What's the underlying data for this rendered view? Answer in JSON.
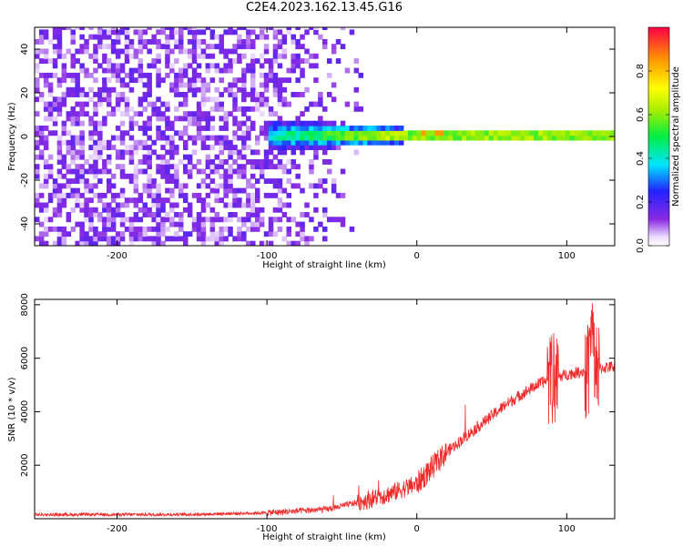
{
  "title": "C2E4.2023.162.13.45.G16",
  "chart_data": [
    {
      "type": "heatmap",
      "xlabel": "Height of straight line (km)",
      "ylabel": "Frequency (Hz)",
      "xlim": [
        -255,
        132
      ],
      "ylim": [
        -50,
        50
      ],
      "xticks": [
        -200,
        -100,
        0,
        100
      ],
      "yticks": [
        -40,
        -20,
        0,
        20,
        40
      ],
      "colorbar": {
        "label": "Normalized spectral amplitude",
        "range": [
          0,
          1
        ],
        "ticks": [
          "0.0",
          "0.2",
          "0.4",
          "0.6",
          "0.8"
        ]
      },
      "features": {
        "broadband_noise_x": [
          -255,
          -35
        ],
        "broadband_amplitude": 0.15,
        "signal_frequency_hz": 0,
        "signal_onset_x": -100,
        "signal_peak_amplitude": 0.85
      }
    },
    {
      "type": "line",
      "xlabel": "Height of straight line (km)",
      "ylabel": "SNR (10 * v/v)",
      "xlim": [
        -255,
        132
      ],
      "ylim": [
        0,
        8200
      ],
      "xticks": [
        -200,
        -100,
        0,
        100
      ],
      "yticks": [
        2000,
        4000,
        6000,
        8000
      ],
      "color": "#ee2b2b",
      "trend": {
        "x": [
          -255,
          -150,
          -100,
          -60,
          -40,
          -20,
          0,
          20,
          40,
          60,
          80,
          90,
          95,
          100,
          110,
          120,
          132
        ],
        "y": [
          150,
          160,
          220,
          350,
          600,
          900,
          1300,
          2500,
          3400,
          4300,
          5000,
          5250,
          5300,
          5400,
          5500,
          5600,
          5700
        ]
      }
    }
  ]
}
